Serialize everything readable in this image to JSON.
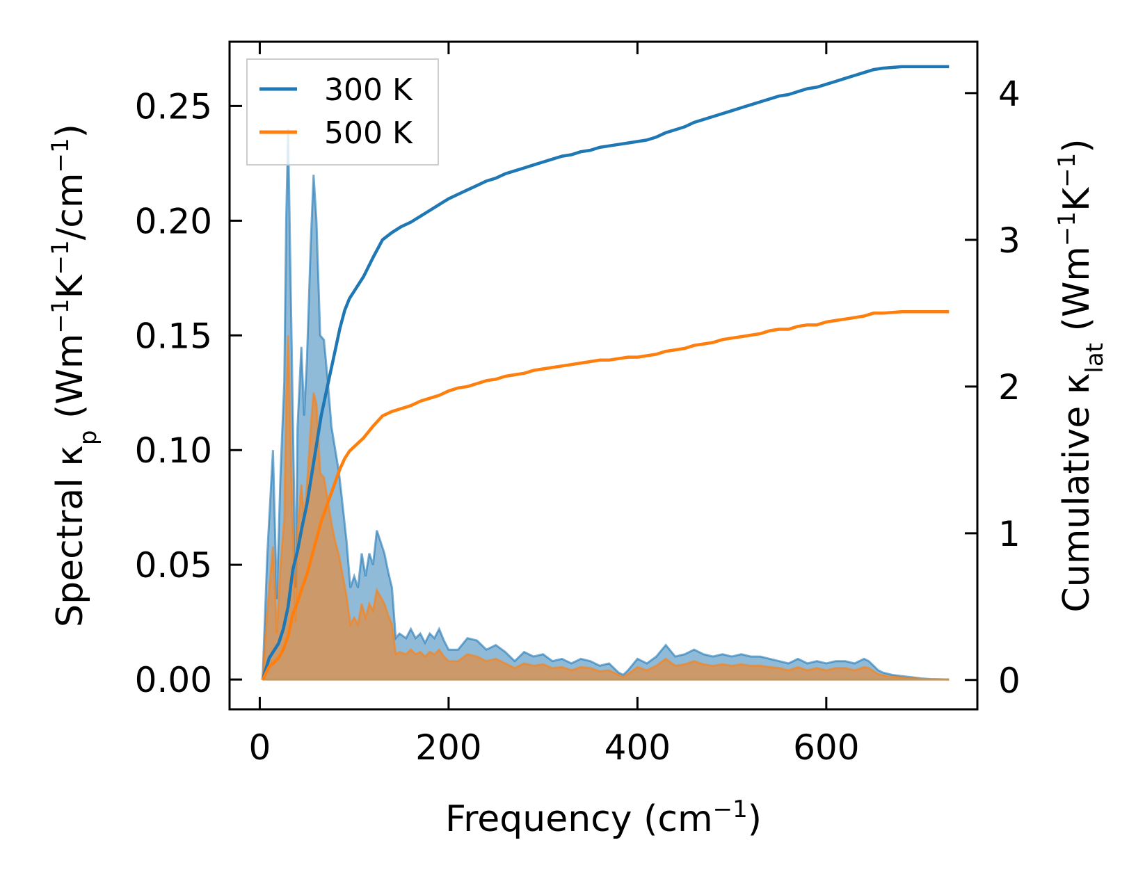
{
  "chart_data": {
    "type": "line",
    "x_axis": {
      "label": "Frequency (cm",
      "label_sup": "−1",
      "label_end": ")",
      "range": [
        -32,
        760
      ],
      "ticks": [
        0,
        200,
        400,
        600
      ],
      "tick_labels": [
        "0",
        "200",
        "400",
        "600"
      ]
    },
    "y_left": {
      "label_parts": [
        "Spectral κ",
        "p",
        " (Wm",
        "−1",
        "K",
        "−1",
        "/cm",
        "−1",
        ")"
      ],
      "range": [
        -0.013,
        0.278
      ],
      "ticks": [
        0,
        0.05,
        0.1,
        0.15,
        0.2,
        0.25
      ],
      "tick_labels": [
        "0.00",
        "0.05",
        "0.10",
        "0.15",
        "0.20",
        "0.25"
      ]
    },
    "y_right": {
      "label_parts": [
        "Cumulative κ",
        "lat",
        " (Wm",
        "−1",
        "K",
        "−1",
        ")"
      ],
      "range": [
        -0.2,
        4.35
      ],
      "ticks": [
        0,
        1,
        2,
        3,
        4
      ],
      "tick_labels": [
        "0",
        "1",
        "2",
        "3",
        "4"
      ]
    },
    "legend": {
      "position": "top-left",
      "entries": [
        {
          "label": "300 K",
          "color": "#1f77b4"
        },
        {
          "label": "500 K",
          "color": "#ff7f0e"
        }
      ]
    },
    "series": [
      {
        "name": "300 K",
        "color": "#1f77b4",
        "spectral": {
          "x": [
            3,
            8,
            14,
            18,
            22,
            26,
            28,
            30,
            34,
            38,
            40,
            44,
            47,
            50,
            54,
            57,
            60,
            64,
            68,
            72,
            76,
            80,
            84,
            88,
            92,
            96,
            100,
            104,
            108,
            112,
            116,
            120,
            124,
            128,
            132,
            136,
            140,
            144,
            148,
            155,
            160,
            165,
            170,
            175,
            180,
            185,
            190,
            195,
            200,
            210,
            220,
            230,
            240,
            250,
            260,
            270,
            280,
            290,
            300,
            310,
            320,
            330,
            340,
            350,
            360,
            370,
            380,
            385,
            390,
            400,
            410,
            420,
            430,
            440,
            450,
            460,
            470,
            480,
            490,
            500,
            510,
            520,
            530,
            540,
            550,
            560,
            570,
            580,
            590,
            600,
            610,
            620,
            630,
            640,
            645,
            650,
            655,
            660,
            670,
            680,
            690,
            700,
            710,
            730
          ],
          "y": [
            0,
            0.055,
            0.1,
            0.035,
            0.09,
            0.13,
            0.2,
            0.24,
            0.14,
            0.04,
            0.11,
            0.145,
            0.115,
            0.14,
            0.19,
            0.22,
            0.2,
            0.15,
            0.148,
            0.13,
            0.11,
            0.1,
            0.09,
            0.075,
            0.06,
            0.04,
            0.045,
            0.04,
            0.055,
            0.045,
            0.055,
            0.05,
            0.065,
            0.06,
            0.055,
            0.047,
            0.04,
            0.018,
            0.02,
            0.018,
            0.022,
            0.018,
            0.02,
            0.016,
            0.02,
            0.018,
            0.022,
            0.017,
            0.013,
            0.013,
            0.018,
            0.017,
            0.013,
            0.015,
            0.012,
            0.008,
            0.012,
            0.01,
            0.011,
            0.008,
            0.009,
            0.007,
            0.009,
            0.008,
            0.006,
            0.007,
            0.003,
            0.002,
            0.004,
            0.009,
            0.007,
            0.01,
            0.015,
            0.01,
            0.011,
            0.013,
            0.011,
            0.01,
            0.011,
            0.01,
            0.011,
            0.01,
            0.01,
            0.009,
            0.008,
            0.007,
            0.009,
            0.007,
            0.008,
            0.007,
            0.008,
            0.008,
            0.007,
            0.009,
            0.008,
            0.006,
            0.004,
            0.003,
            0.002,
            0.0015,
            0.001,
            0.0005,
            0.0002,
            0
          ]
        },
        "cumulative": {
          "x": [
            3,
            10,
            20,
            25,
            30,
            35,
            40,
            45,
            50,
            55,
            60,
            65,
            70,
            75,
            80,
            85,
            90,
            95,
            100,
            110,
            120,
            130,
            140,
            150,
            160,
            170,
            180,
            190,
            200,
            210,
            220,
            230,
            240,
            250,
            260,
            270,
            280,
            290,
            300,
            310,
            320,
            330,
            340,
            350,
            360,
            370,
            380,
            390,
            400,
            410,
            420,
            430,
            440,
            450,
            460,
            470,
            480,
            490,
            500,
            510,
            520,
            530,
            540,
            550,
            560,
            570,
            580,
            590,
            600,
            610,
            620,
            630,
            640,
            650,
            660,
            680,
            700,
            730
          ],
          "y": [
            0,
            0.15,
            0.25,
            0.35,
            0.5,
            0.75,
            0.88,
            1.05,
            1.2,
            1.4,
            1.6,
            1.8,
            1.95,
            2.1,
            2.25,
            2.4,
            2.52,
            2.6,
            2.65,
            2.75,
            2.88,
            3.0,
            3.05,
            3.09,
            3.12,
            3.16,
            3.2,
            3.24,
            3.28,
            3.31,
            3.34,
            3.37,
            3.4,
            3.42,
            3.45,
            3.47,
            3.49,
            3.51,
            3.53,
            3.55,
            3.57,
            3.58,
            3.6,
            3.61,
            3.63,
            3.64,
            3.65,
            3.66,
            3.67,
            3.68,
            3.7,
            3.73,
            3.75,
            3.77,
            3.8,
            3.82,
            3.84,
            3.86,
            3.88,
            3.9,
            3.92,
            3.94,
            3.96,
            3.98,
            3.99,
            4.01,
            4.03,
            4.04,
            4.06,
            4.08,
            4.1,
            4.12,
            4.14,
            4.16,
            4.17,
            4.18,
            4.18,
            4.18
          ]
        }
      },
      {
        "name": "500 K",
        "color": "#ff7f0e",
        "spectral": {
          "x": [
            3,
            8,
            14,
            18,
            22,
            26,
            28,
            30,
            34,
            38,
            40,
            44,
            47,
            50,
            54,
            57,
            60,
            64,
            68,
            72,
            76,
            80,
            84,
            88,
            92,
            96,
            100,
            104,
            108,
            112,
            116,
            120,
            124,
            128,
            132,
            136,
            140,
            144,
            148,
            155,
            160,
            165,
            170,
            175,
            180,
            185,
            190,
            195,
            200,
            210,
            220,
            230,
            240,
            250,
            260,
            270,
            280,
            290,
            300,
            310,
            320,
            330,
            340,
            350,
            360,
            370,
            380,
            385,
            390,
            400,
            410,
            420,
            430,
            440,
            450,
            460,
            470,
            480,
            490,
            500,
            510,
            520,
            530,
            540,
            550,
            560,
            570,
            580,
            590,
            600,
            610,
            620,
            630,
            640,
            645,
            650,
            655,
            660,
            670,
            680,
            690,
            700,
            710,
            730
          ],
          "y": [
            0,
            0.03,
            0.058,
            0.02,
            0.05,
            0.07,
            0.12,
            0.15,
            0.08,
            0.025,
            0.065,
            0.085,
            0.07,
            0.085,
            0.11,
            0.125,
            0.12,
            0.09,
            0.088,
            0.078,
            0.068,
            0.06,
            0.054,
            0.045,
            0.036,
            0.024,
            0.027,
            0.024,
            0.033,
            0.027,
            0.033,
            0.03,
            0.039,
            0.036,
            0.033,
            0.028,
            0.024,
            0.011,
            0.012,
            0.011,
            0.013,
            0.011,
            0.012,
            0.01,
            0.012,
            0.011,
            0.013,
            0.01,
            0.008,
            0.008,
            0.011,
            0.01,
            0.008,
            0.009,
            0.007,
            0.005,
            0.007,
            0.006,
            0.0066,
            0.005,
            0.0054,
            0.004,
            0.0054,
            0.005,
            0.0036,
            0.004,
            0.002,
            0.0012,
            0.0024,
            0.0054,
            0.004,
            0.006,
            0.009,
            0.006,
            0.0066,
            0.008,
            0.0066,
            0.006,
            0.0066,
            0.006,
            0.0066,
            0.006,
            0.006,
            0.0054,
            0.005,
            0.004,
            0.0054,
            0.004,
            0.005,
            0.004,
            0.005,
            0.005,
            0.004,
            0.0054,
            0.005,
            0.0036,
            0.0024,
            0.0018,
            0.0012,
            0.0009,
            0.0006,
            0.0003,
            0.0001,
            0
          ]
        },
        "cumulative": {
          "x": [
            3,
            10,
            20,
            25,
            30,
            35,
            40,
            45,
            50,
            55,
            60,
            65,
            70,
            75,
            80,
            85,
            90,
            95,
            100,
            110,
            120,
            130,
            140,
            150,
            160,
            170,
            180,
            190,
            200,
            210,
            220,
            230,
            240,
            250,
            260,
            270,
            280,
            290,
            300,
            310,
            320,
            330,
            340,
            350,
            360,
            370,
            380,
            390,
            400,
            410,
            420,
            430,
            440,
            450,
            460,
            470,
            480,
            490,
            500,
            510,
            520,
            530,
            540,
            550,
            560,
            570,
            580,
            590,
            600,
            610,
            620,
            630,
            640,
            650,
            660,
            680,
            700,
            730
          ],
          "y": [
            0,
            0.09,
            0.15,
            0.21,
            0.3,
            0.45,
            0.53,
            0.63,
            0.72,
            0.84,
            0.96,
            1.08,
            1.17,
            1.26,
            1.35,
            1.44,
            1.51,
            1.56,
            1.59,
            1.65,
            1.73,
            1.8,
            1.83,
            1.85,
            1.87,
            1.9,
            1.92,
            1.94,
            1.97,
            1.99,
            2.0,
            2.02,
            2.04,
            2.05,
            2.07,
            2.08,
            2.09,
            2.11,
            2.12,
            2.13,
            2.14,
            2.15,
            2.16,
            2.17,
            2.18,
            2.18,
            2.19,
            2.2,
            2.2,
            2.21,
            2.22,
            2.24,
            2.25,
            2.26,
            2.28,
            2.29,
            2.3,
            2.32,
            2.33,
            2.34,
            2.35,
            2.36,
            2.38,
            2.39,
            2.39,
            2.41,
            2.42,
            2.42,
            2.44,
            2.45,
            2.46,
            2.47,
            2.48,
            2.5,
            2.5,
            2.51,
            2.51,
            2.51
          ]
        }
      }
    ]
  }
}
